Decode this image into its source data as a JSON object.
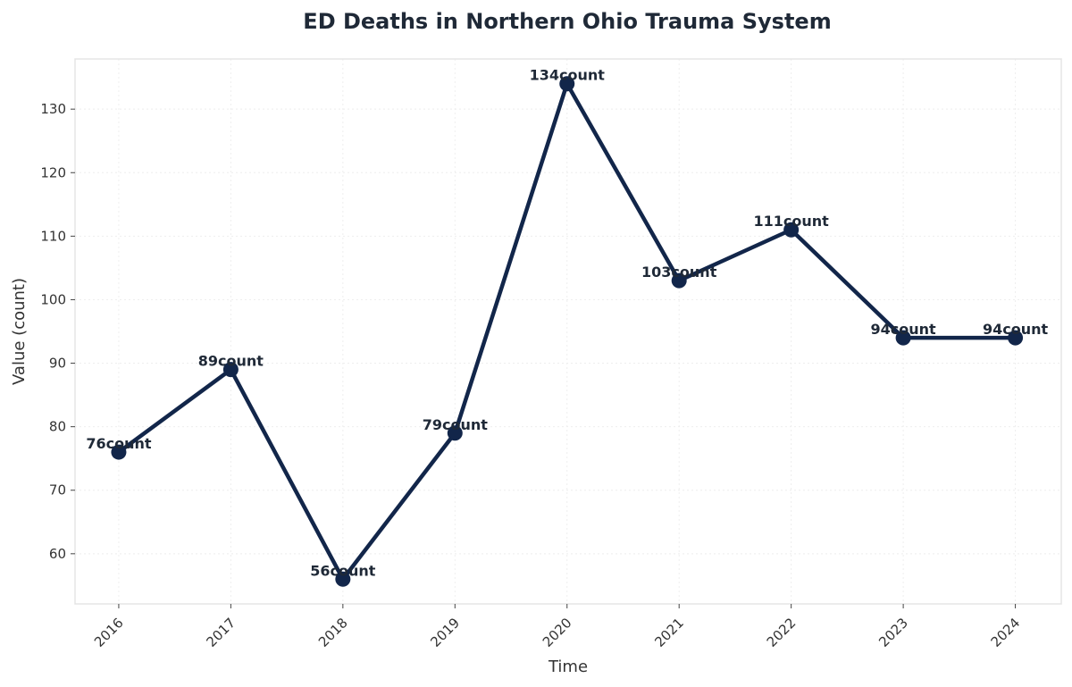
{
  "chart_data": {
    "type": "line",
    "title": "ED Deaths in Northern Ohio Trauma System",
    "xlabel": "Time",
    "ylabel": "Value (count)",
    "x": [
      "2016",
      "2017",
      "2018",
      "2019",
      "2020",
      "2021",
      "2022",
      "2023",
      "2024"
    ],
    "series": [
      {
        "values": [
          76,
          89,
          56,
          79,
          134,
          103,
          111,
          94,
          94
        ],
        "labels": [
          "76count",
          "89count",
          "56count",
          "79count",
          "134count",
          "103count",
          "111count",
          "94count",
          "94count"
        ]
      }
    ],
    "yticks": [
      60,
      70,
      80,
      90,
      100,
      110,
      120,
      130
    ],
    "ylim": [
      52.1,
      137.9
    ],
    "xlim": [
      2015.61,
      2024.41
    ],
    "grid": true,
    "legend": "none",
    "colors": {
      "line": "#12264a",
      "spine": "#e5e5e5",
      "grid": "#eeeeee"
    }
  }
}
